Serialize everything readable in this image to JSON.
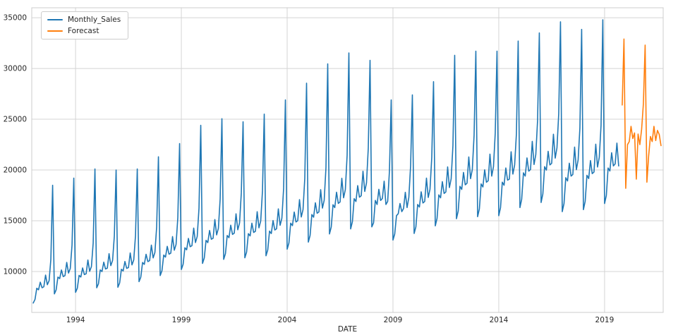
{
  "figure": {
    "background": "#ffffff",
    "grid_color": "#d4d4d4",
    "spine_color": "#cccccc",
    "text_color": "#262626"
  },
  "chart_data": {
    "type": "line",
    "title": "",
    "xlabel": "DATE",
    "ylabel": "",
    "grid": true,
    "legend_position": "upper left",
    "x_ticks": [
      1994,
      1999,
      2004,
      2009,
      2014,
      2019
    ],
    "y_ticks": [
      10000,
      15000,
      20000,
      25000,
      30000,
      35000
    ],
    "xlim": [
      1991.93,
      2021.77
    ],
    "ylim": [
      5970,
      35980
    ],
    "series": [
      {
        "name": "Monthly_Sales",
        "color": "#1f77b4",
        "start": "1992-01",
        "values": [
          6900,
          7250,
          8350,
          8200,
          8950,
          8400,
          8500,
          9650,
          8700,
          9100,
          11200,
          18500,
          7800,
          8200,
          9450,
          9300,
          10150,
          9500,
          9600,
          10900,
          9850,
          10300,
          12600,
          19200,
          7950,
          8350,
          9620,
          9460,
          10350,
          9700,
          9780,
          11130,
          10020,
          10490,
          12810,
          20100,
          8400,
          8800,
          10160,
          10000,
          10920,
          10250,
          10330,
          11760,
          10580,
          11090,
          13510,
          20000,
          8450,
          8870,
          10220,
          10060,
          10990,
          10310,
          10390,
          11830,
          10650,
          11150,
          13550,
          20100,
          9000,
          9450,
          10890,
          10710,
          11700,
          10980,
          11070,
          12600,
          11340,
          11880,
          14400,
          21300,
          9600,
          10080,
          11620,
          11420,
          12480,
          11710,
          11810,
          13440,
          12100,
          12670,
          15320,
          22600,
          10200,
          10710,
          12340,
          12140,
          13260,
          12440,
          12550,
          14280,
          12850,
          13460,
          16240,
          24400,
          10800,
          11340,
          13070,
          12850,
          14040,
          13180,
          13280,
          15120,
          13610,
          14260,
          17150,
          25050,
          11200,
          11760,
          13550,
          13330,
          14560,
          13660,
          13780,
          15680,
          14110,
          14780,
          17740,
          24750,
          11350,
          11920,
          13730,
          13510,
          14760,
          13850,
          13960,
          15890,
          14300,
          14980,
          17930,
          25500,
          11550,
          12130,
          13980,
          13740,
          15020,
          14090,
          14210,
          16170,
          14550,
          15250,
          18200,
          26900,
          12200,
          12810,
          14760,
          14520,
          15860,
          14880,
          15010,
          17080,
          15370,
          16100,
          19180,
          28550,
          12900,
          13550,
          15610,
          15350,
          16770,
          15740,
          15870,
          18060,
          16250,
          17030,
          20230,
          30450,
          13700,
          14390,
          16580,
          16300,
          17810,
          16710,
          16850,
          19180,
          17260,
          18080,
          21430,
          31530,
          14200,
          14910,
          17180,
          16900,
          18460,
          17320,
          17470,
          19880,
          17890,
          18740,
          22150,
          30800,
          14400,
          14800,
          17000,
          16600,
          18100,
          17000,
          17200,
          18900,
          16600,
          16900,
          19900,
          26900,
          13100,
          13700,
          15500,
          15700,
          16700,
          15900,
          16200,
          17800,
          16300,
          17300,
          20400,
          27400,
          13750,
          14400,
          16600,
          16350,
          17850,
          16750,
          16900,
          19200,
          17300,
          18100,
          21230,
          28700,
          14500,
          15230,
          17550,
          17260,
          18850,
          17690,
          17840,
          20300,
          18270,
          19140,
          22400,
          31300,
          15200,
          15960,
          18390,
          18090,
          19760,
          18540,
          18700,
          21280,
          19150,
          20060,
          23410,
          31700,
          15400,
          16170,
          18630,
          18330,
          20020,
          18790,
          18940,
          21560,
          19400,
          20330,
          23640,
          31700,
          15500,
          16300,
          18800,
          18500,
          20200,
          19000,
          19100,
          21800,
          19600,
          20500,
          23560,
          32700,
          16300,
          17120,
          19720,
          19400,
          21190,
          19890,
          20050,
          22820,
          20540,
          21520,
          24860,
          33500,
          16800,
          17640,
          20330,
          19990,
          21840,
          20500,
          20660,
          23520,
          21170,
          22180,
          25540,
          34600,
          15900,
          16700,
          19240,
          18920,
          20670,
          19400,
          19560,
          22260,
          20030,
          20990,
          24120,
          33850,
          16100,
          16910,
          19480,
          19160,
          20930,
          19640,
          19800,
          22540,
          20290,
          21250,
          24390,
          34800,
          16700,
          17500,
          20200,
          19900,
          21700,
          20400,
          20600,
          22650,
          20400
        ]
      },
      {
        "name": "Forecast",
        "color": "#ff7f0e",
        "start": "2019-11",
        "values": [
          26400,
          32900,
          18200,
          22500,
          22800,
          24300,
          23100,
          23650,
          19100,
          23540,
          22500,
          24000,
          26500,
          32300,
          18800,
          21400,
          23300,
          22800,
          24300,
          22900,
          23900,
          23500,
          22400
        ]
      }
    ]
  }
}
